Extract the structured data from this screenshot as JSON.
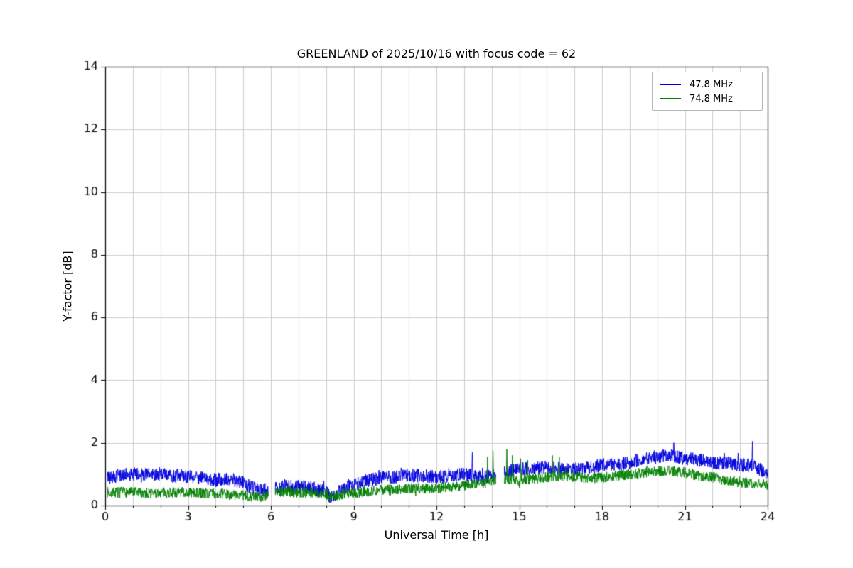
{
  "chart_data": {
    "type": "line",
    "title": "GREENLAND of 2025/10/16 with focus code = 62",
    "xlabel": "Universal Time [h]",
    "ylabel": "Y-factor [dB]",
    "xlim": [
      0,
      24
    ],
    "ylim": [
      0,
      14
    ],
    "xticks": [
      0,
      3,
      6,
      9,
      12,
      15,
      18,
      21,
      24
    ],
    "yticks": [
      0,
      2,
      4,
      6,
      8,
      10,
      12,
      14
    ],
    "x_minor_step": 1,
    "grid": true,
    "grid_color": "#cccccc",
    "legend_position": "upper right",
    "data_x_start": 0.08,
    "data_x_end": 24,
    "series": [
      {
        "name": "47.8 MHz",
        "color": "#0000dd",
        "noise_amp": 0.22,
        "seed": 42,
        "gaps": [
          [
            5.9,
            6.15
          ],
          [
            14.15,
            14.45
          ]
        ],
        "points": [
          [
            0,
            0.9
          ],
          [
            0.5,
            0.95
          ],
          [
            1,
            1.0
          ],
          [
            1.5,
            0.98
          ],
          [
            2,
            1.0
          ],
          [
            2.5,
            0.95
          ],
          [
            3,
            0.95
          ],
          [
            3.5,
            0.88
          ],
          [
            4,
            0.82
          ],
          [
            4.5,
            0.85
          ],
          [
            5,
            0.72
          ],
          [
            5.25,
            0.6
          ],
          [
            5.5,
            0.5
          ],
          [
            5.9,
            0.5
          ],
          [
            6.15,
            0.55
          ],
          [
            6.5,
            0.62
          ],
          [
            7,
            0.6
          ],
          [
            7.5,
            0.55
          ],
          [
            8,
            0.45
          ],
          [
            8.2,
            0.2
          ],
          [
            8.4,
            0.4
          ],
          [
            8.7,
            0.55
          ],
          [
            9,
            0.65
          ],
          [
            9.5,
            0.8
          ],
          [
            10,
            0.88
          ],
          [
            10.5,
            0.92
          ],
          [
            11,
            0.95
          ],
          [
            11.5,
            0.95
          ],
          [
            12,
            0.9
          ],
          [
            12.5,
            0.95
          ],
          [
            13,
            1.0
          ],
          [
            13.5,
            0.9
          ],
          [
            14,
            0.95
          ],
          [
            14.45,
            1.05
          ],
          [
            15,
            1.15
          ],
          [
            15.5,
            1.2
          ],
          [
            16,
            1.2
          ],
          [
            16.5,
            1.18
          ],
          [
            17,
            1.15
          ],
          [
            17.5,
            1.2
          ],
          [
            18,
            1.3
          ],
          [
            18.5,
            1.3
          ],
          [
            19,
            1.35
          ],
          [
            19.5,
            1.5
          ],
          [
            20,
            1.55
          ],
          [
            20.5,
            1.6
          ],
          [
            21,
            1.5
          ],
          [
            21.5,
            1.45
          ],
          [
            22,
            1.38
          ],
          [
            22.5,
            1.35
          ],
          [
            23,
            1.3
          ],
          [
            23.5,
            1.28
          ],
          [
            24,
            1.0
          ]
        ],
        "spikes": [
          [
            13.3,
            1.7
          ],
          [
            20.6,
            2.0
          ],
          [
            23.45,
            2.05
          ]
        ]
      },
      {
        "name": "74.8 MHz",
        "color": "#007f00",
        "noise_amp": 0.17,
        "seed": 7,
        "gaps": [
          [
            5.9,
            6.15
          ],
          [
            14.15,
            14.45
          ]
        ],
        "points": [
          [
            0,
            0.42
          ],
          [
            0.5,
            0.42
          ],
          [
            1,
            0.42
          ],
          [
            1.5,
            0.4
          ],
          [
            2,
            0.4
          ],
          [
            2.5,
            0.42
          ],
          [
            3,
            0.42
          ],
          [
            3.5,
            0.4
          ],
          [
            4,
            0.38
          ],
          [
            4.5,
            0.35
          ],
          [
            5,
            0.32
          ],
          [
            5.5,
            0.28
          ],
          [
            5.9,
            0.35
          ],
          [
            6.15,
            0.45
          ],
          [
            6.5,
            0.45
          ],
          [
            7,
            0.42
          ],
          [
            7.5,
            0.4
          ],
          [
            8,
            0.35
          ],
          [
            8.2,
            0.3
          ],
          [
            8.5,
            0.35
          ],
          [
            9,
            0.4
          ],
          [
            9.5,
            0.45
          ],
          [
            10,
            0.5
          ],
          [
            10.5,
            0.5
          ],
          [
            11,
            0.55
          ],
          [
            11.5,
            0.55
          ],
          [
            12,
            0.55
          ],
          [
            12.5,
            0.6
          ],
          [
            13,
            0.65
          ],
          [
            13.5,
            0.7
          ],
          [
            14,
            0.75
          ],
          [
            14.45,
            0.85
          ],
          [
            15,
            0.8
          ],
          [
            15.5,
            0.85
          ],
          [
            16,
            0.9
          ],
          [
            16.5,
            0.95
          ],
          [
            17,
            0.9
          ],
          [
            17.5,
            0.85
          ],
          [
            18,
            0.9
          ],
          [
            18.5,
            0.95
          ],
          [
            19,
            1.0
          ],
          [
            19.5,
            1.05
          ],
          [
            20,
            1.1
          ],
          [
            20.5,
            1.1
          ],
          [
            21,
            1.05
          ],
          [
            21.5,
            0.95
          ],
          [
            22,
            0.9
          ],
          [
            22.5,
            0.8
          ],
          [
            23,
            0.75
          ],
          [
            23.5,
            0.7
          ],
          [
            24,
            0.65
          ]
        ],
        "spikes": [
          [
            13.85,
            1.55
          ],
          [
            14.05,
            1.75
          ],
          [
            14.55,
            1.8
          ],
          [
            14.75,
            1.6
          ],
          [
            15.05,
            1.5
          ],
          [
            15.3,
            1.45
          ],
          [
            16.2,
            1.6
          ],
          [
            16.45,
            1.55
          ]
        ]
      }
    ]
  }
}
